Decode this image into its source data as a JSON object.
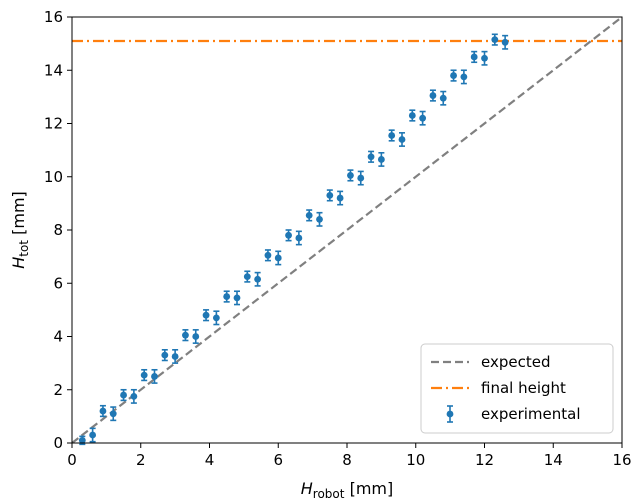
{
  "chart_data": {
    "type": "scatter",
    "xlabel": {
      "main": "H",
      "sub": "robot",
      "unit": " [mm]"
    },
    "ylabel": {
      "main": "H",
      "sub": "tot",
      "unit": " [mm]"
    },
    "xlim": [
      0,
      16
    ],
    "ylim": [
      0,
      16
    ],
    "xticks": [
      "0",
      "2",
      "4",
      "6",
      "8",
      "10",
      "12",
      "14",
      "16"
    ],
    "yticks": [
      "0",
      "2",
      "4",
      "6",
      "8",
      "10",
      "12",
      "14",
      "16"
    ],
    "grid": false,
    "legend_position": "bottom-right",
    "legend": [
      {
        "label": "expected",
        "style": "dashed",
        "color": "#808080"
      },
      {
        "label": "final height",
        "style": "dashdot",
        "color": "#ff7f0e"
      },
      {
        "label": "experimental",
        "style": "errorbar",
        "color": "#1f77b4"
      }
    ],
    "series": [
      {
        "name": "expected",
        "type": "line",
        "color": "#808080",
        "x": [
          0,
          16
        ],
        "y": [
          0,
          16
        ]
      },
      {
        "name": "final height",
        "type": "hline",
        "color": "#ff7f0e",
        "y": 15.1
      },
      {
        "name": "experimental",
        "type": "errorbar",
        "color": "#1f77b4",
        "x": [
          0.3,
          0.6,
          0.9,
          1.2,
          1.5,
          1.8,
          2.1,
          2.4,
          2.7,
          3.0,
          3.3,
          3.6,
          3.9,
          4.2,
          4.5,
          4.8,
          5.1,
          5.4,
          5.7,
          6.0,
          6.3,
          6.6,
          6.9,
          7.2,
          7.5,
          7.8,
          8.1,
          8.4,
          8.7,
          9.0,
          9.3,
          9.6,
          9.9,
          10.2,
          10.5,
          10.8,
          11.1,
          11.4,
          11.7,
          12.0,
          12.3,
          12.6
        ],
        "y": [
          0.1,
          0.3,
          1.2,
          1.1,
          1.8,
          1.75,
          2.55,
          2.5,
          3.3,
          3.25,
          4.05,
          4.0,
          4.8,
          4.7,
          5.5,
          5.45,
          6.25,
          6.15,
          7.05,
          6.95,
          7.8,
          7.7,
          8.55,
          8.4,
          9.3,
          9.2,
          10.05,
          9.95,
          10.75,
          10.65,
          11.55,
          11.4,
          12.3,
          12.2,
          13.05,
          12.95,
          13.8,
          13.75,
          14.5,
          14.45,
          15.15,
          15.05
        ],
        "yerr": [
          0.15,
          0.25,
          0.2,
          0.25,
          0.2,
          0.25,
          0.2,
          0.25,
          0.2,
          0.25,
          0.2,
          0.25,
          0.2,
          0.25,
          0.2,
          0.25,
          0.2,
          0.25,
          0.2,
          0.25,
          0.2,
          0.25,
          0.2,
          0.25,
          0.2,
          0.25,
          0.2,
          0.25,
          0.2,
          0.25,
          0.2,
          0.25,
          0.2,
          0.25,
          0.2,
          0.25,
          0.2,
          0.25,
          0.2,
          0.25,
          0.2,
          0.25
        ]
      }
    ]
  }
}
